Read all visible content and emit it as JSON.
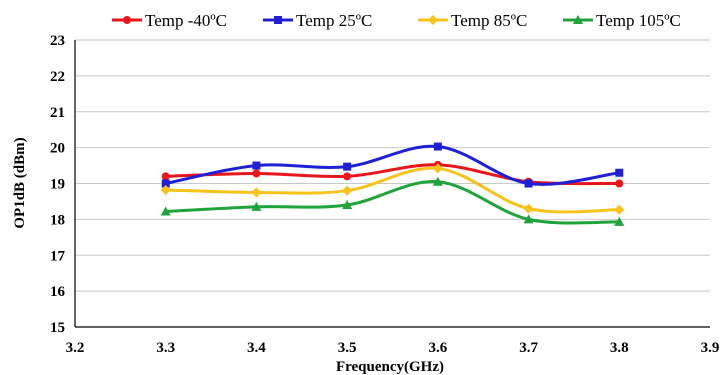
{
  "chart_data": {
    "type": "line",
    "xlabel": "Frequency(GHz)",
    "ylabel": "OP1dB (dBm)",
    "xlim": [
      3.2,
      3.9
    ],
    "ylim": [
      15,
      23
    ],
    "x_ticks": [
      "3.2",
      "3.3",
      "3.4",
      "3.5",
      "3.6",
      "3.7",
      "3.8",
      "3.9"
    ],
    "y_ticks": [
      "15",
      "16",
      "17",
      "18",
      "19",
      "20",
      "21",
      "22",
      "23"
    ],
    "grid": "horizontal",
    "legend_position": "top",
    "smooth": true,
    "x": [
      3.3,
      3.4,
      3.5,
      3.6,
      3.7,
      3.8
    ],
    "series": [
      {
        "name": "Temp -40ºC",
        "color": "#e8161b",
        "marker": "circle",
        "values": [
          19.2,
          19.28,
          19.2,
          19.52,
          19.05,
          19.0
        ]
      },
      {
        "name": "Temp 25ºC",
        "color": "#1f1fd6",
        "marker": "square",
        "values": [
          19.0,
          19.5,
          19.47,
          20.03,
          19.0,
          19.3
        ]
      },
      {
        "name": "Temp 85ºC",
        "color": "#f7c21a",
        "marker": "diamond",
        "values": [
          18.82,
          18.75,
          18.8,
          19.42,
          18.3,
          18.27
        ]
      },
      {
        "name": "Temp 105ºC",
        "color": "#1fa33a",
        "marker": "triangle",
        "values": [
          18.22,
          18.35,
          18.4,
          19.05,
          18.0,
          17.93
        ]
      }
    ]
  }
}
